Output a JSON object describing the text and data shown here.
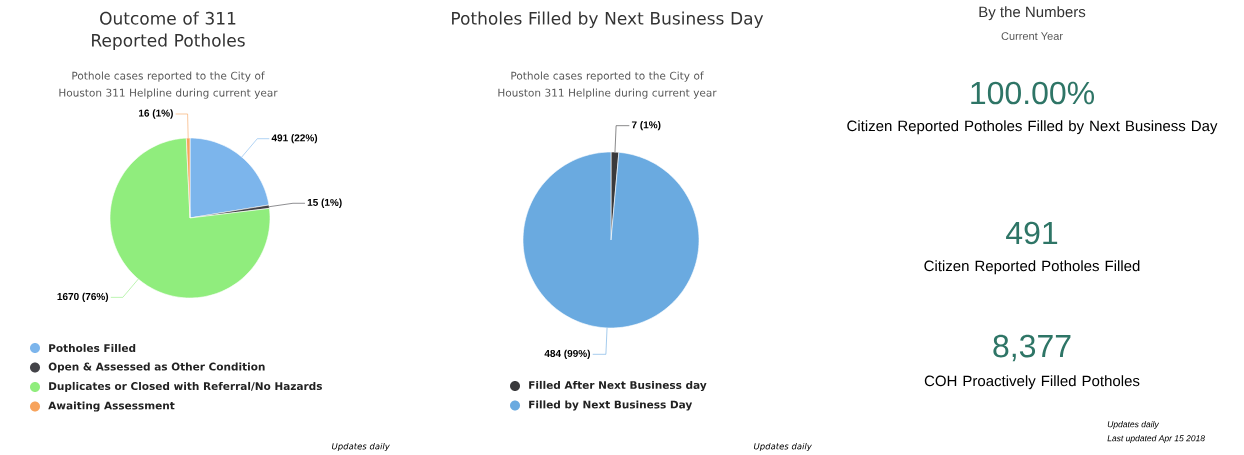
{
  "chart_data": [
    {
      "type": "pie",
      "title": "Outcome of 311 Reported Potholes",
      "subtitle": "Pothole cases reported to the City of Houston 311 Helpline during current year",
      "categories": [
        "Potholes Filled",
        "Open & Assessed as Other Condition",
        "Duplicates or Closed with Referral/No Hazards",
        "Awaiting Assessment"
      ],
      "values": [
        491,
        15,
        1670,
        16
      ],
      "value_labels": [
        "491 (22%)",
        "15 (1%)",
        "1670 (76%)",
        "16 (1%)"
      ],
      "colors": [
        "#7cb5ec",
        "#434348",
        "#90ed7d",
        "#f7a35c"
      ],
      "legend": "bottom",
      "annotations": [
        "Updates daily"
      ]
    },
    {
      "type": "pie",
      "title": "Potholes Filled by Next Business Day",
      "subtitle": "Pothole cases reported to the City of Houston 311 Helpline during current year",
      "categories": [
        "Filled After Next Business day",
        "Filled by Next Business Day"
      ],
      "values": [
        7,
        484
      ],
      "value_labels": [
        "7 (1%)",
        "484 (99%)"
      ],
      "colors": [
        "#3a3a3c",
        "#6aaae0"
      ],
      "legend": "bottom",
      "annotations": [
        "Updates daily"
      ]
    },
    {
      "type": "other",
      "title": "By the Numbers",
      "subtitle": "Current Year",
      "categories": [
        "Citizen Reported Potholes Filled by Next Business Day",
        "Citizen Reported Potholes Filled",
        "COH Proactively Filled Potholes"
      ],
      "values": [
        100.0,
        491,
        8377
      ],
      "value_labels": [
        "100.00%",
        "491",
        "8,377"
      ],
      "color": "#2e7566",
      "annotations": [
        "Updates daily",
        "Last updated Apr 15 2018"
      ]
    }
  ]
}
